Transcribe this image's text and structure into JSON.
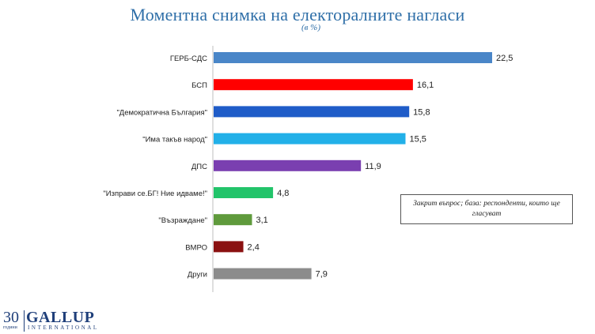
{
  "title": "Моментна снимка на електоралните нагласи",
  "subtitle": "(в %)",
  "note": "Закрит въпрос; база: респонденти, които ще гласуват",
  "logo": {
    "number": "30",
    "sub": "години",
    "name": "GALLUP",
    "tagline": "INTERNATIONAL"
  },
  "chart_data": {
    "type": "bar",
    "orientation": "horizontal",
    "categories": [
      "ГЕРБ-СДС",
      "БСП",
      "\"Демократична България\"",
      "\"Има такъв народ\"",
      "ДПС",
      "\"Изправи се.БГ! Ние идваме!\"",
      "\"Възраждане\"",
      "ВМРО",
      "Други"
    ],
    "values": [
      22.5,
      16.1,
      15.8,
      15.5,
      11.9,
      4.8,
      3.1,
      2.4,
      7.9
    ],
    "value_labels": [
      "22,5",
      "16,1",
      "15,8",
      "15,5",
      "11,9",
      "4,8",
      "3,1",
      "2,4",
      "7,9"
    ],
    "colors": [
      "#4a86c8",
      "#ff0000",
      "#1f5cc8",
      "#22b0e8",
      "#7a3fb0",
      "#22c46a",
      "#5f9a3c",
      "#8a1010",
      "#8c8c8c"
    ],
    "grid": false,
    "legend": "none"
  }
}
